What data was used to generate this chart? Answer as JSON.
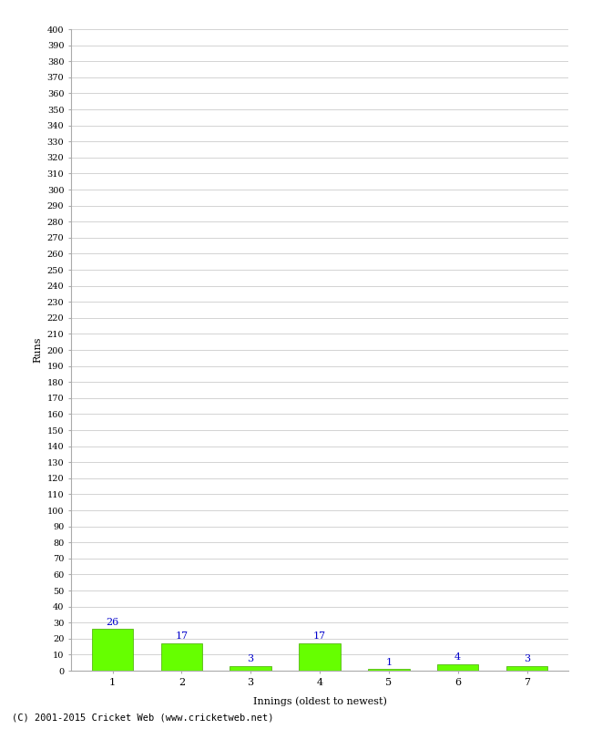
{
  "categories": [
    "1",
    "2",
    "3",
    "4",
    "5",
    "6",
    "7"
  ],
  "values": [
    26,
    17,
    3,
    17,
    1,
    4,
    3
  ],
  "bar_color": "#66ff00",
  "bar_edge_color": "#44aa00",
  "value_label_color": "#0000cc",
  "xlabel": "Innings (oldest to newest)",
  "ylabel": "Runs",
  "ylim": [
    0,
    400
  ],
  "ytick_step": 10,
  "background_color": "#ffffff",
  "grid_color": "#cccccc",
  "footer": "(C) 2001-2015 Cricket Web (www.cricketweb.net)"
}
